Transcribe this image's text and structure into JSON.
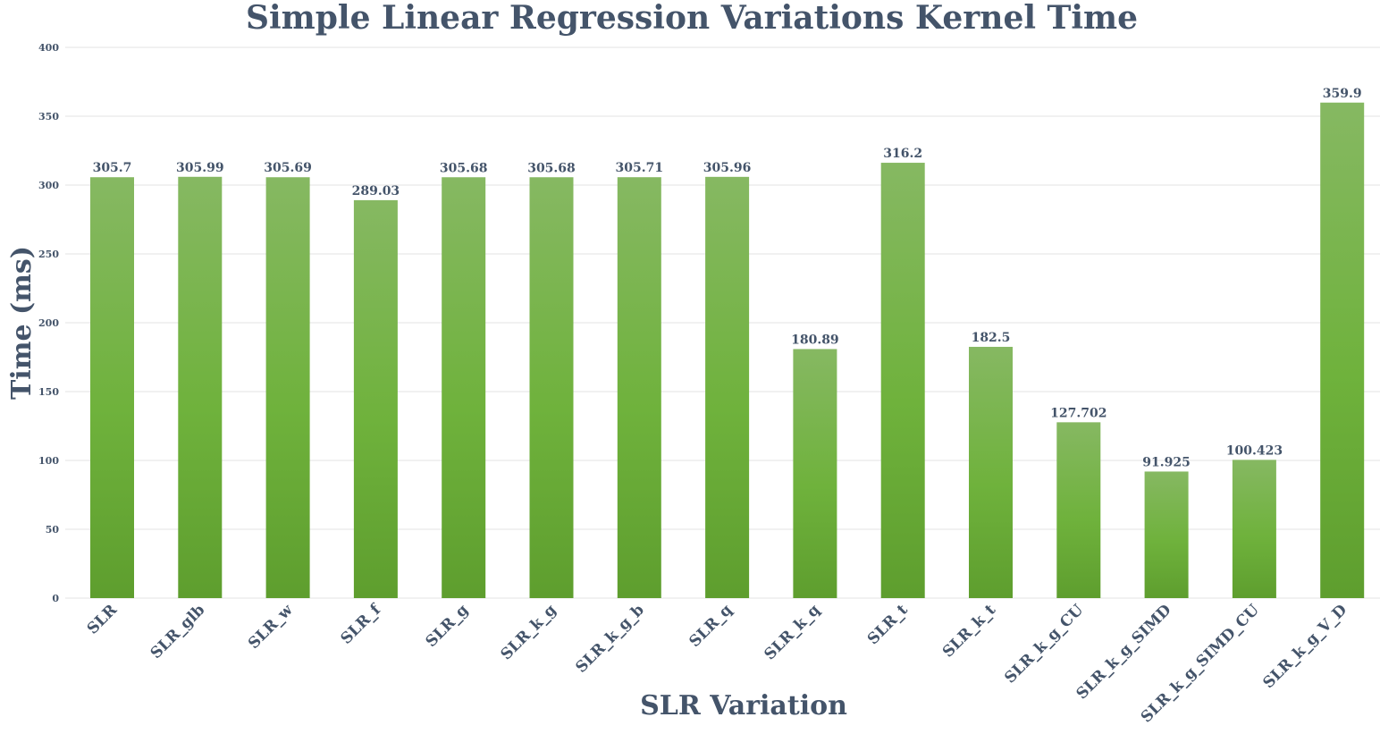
{
  "chart_data": {
    "type": "bar",
    "title": "Simple Linear Regression Variations Kernel Time",
    "xlabel": "SLR Variation",
    "ylabel": "Time (ms)",
    "ylim": [
      0,
      400
    ],
    "yticks": [
      0,
      50,
      100,
      150,
      200,
      250,
      300,
      350,
      400
    ],
    "grid": true,
    "legend": "none",
    "categories": [
      "SLR",
      "SLR_glb",
      "SLR_w",
      "SLR_f",
      "SLR_g",
      "SLR_k_g",
      "SLR_k_g_b",
      "SLR_q",
      "SLR_k_q",
      "SLR_t",
      "SLR_k_t",
      "SLR_k_g_CU",
      "SLR_k_g_SIMD",
      "SLR_k_g_SIMD_CU",
      "SLR_k_g_V_D"
    ],
    "values": [
      305.7,
      305.99,
      305.69,
      289.03,
      305.68,
      305.68,
      305.71,
      305.96,
      180.89,
      316.2,
      182.5,
      127.702,
      91.925,
      100.423,
      359.9
    ],
    "data_labels": [
      "305.7",
      "305.99",
      "305.69",
      "289.03",
      "305.68",
      "305.68",
      "305.71",
      "305.96",
      "180.89",
      "316.2",
      "182.5",
      "127.702",
      "91.925",
      "100.423",
      "359.9"
    ],
    "colors": {
      "bar_top": "#86b862",
      "bar_mid": "#6fb23c",
      "bar_bottom": "#5e9e2e",
      "text": "#44546a",
      "grid": "#e3e3e3"
    }
  }
}
